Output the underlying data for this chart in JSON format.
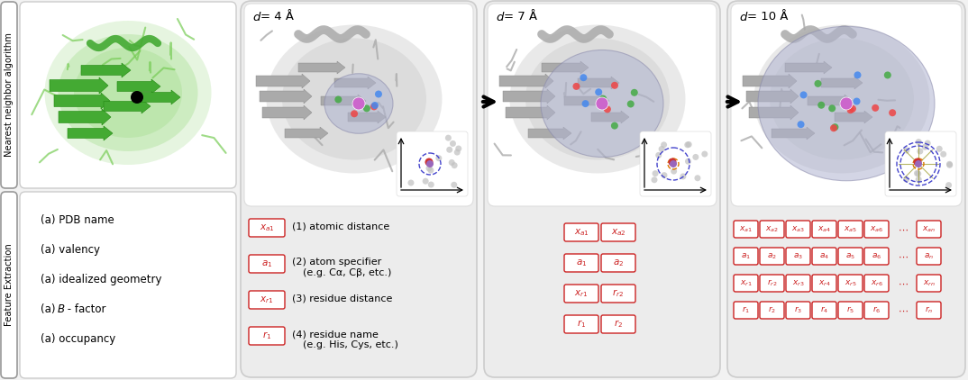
{
  "bg_color": "#f2f2f2",
  "panel_bg": "#ececec",
  "white": "#ffffff",
  "red_color": "#cc2222",
  "title_left_top": "Nearest neighbor algorithm",
  "title_left_bottom": "Feature Extraction",
  "feature_items": [
    "(a) PDB name",
    "(a) valency",
    "(a) idealized geometry",
    "(a) B - factor",
    "(a) occupancy"
  ],
  "panel_titles": [
    "d = 4 Å",
    "d = 7 Å",
    "d = 10 Å"
  ],
  "d_values": [
    "4",
    "7",
    "10"
  ],
  "legend_items": [
    {
      "sym": "x_{a1}",
      "desc1": "(1) atomic distance",
      "desc2": ""
    },
    {
      "sym": "a_1",
      "desc1": "(2) atom specifier",
      "desc2": "(e.g. Cα, Cβ, etc.)"
    },
    {
      "sym": "x_{r1}",
      "desc1": "(3) residue distance",
      "desc2": ""
    },
    {
      "sym": "r_1",
      "desc1": "(4) residue name",
      "desc2": "(e.g. His, Cys, etc.)"
    }
  ],
  "panel2_rows": [
    [
      "x_{a1}",
      "x_{a2}"
    ],
    [
      "a_1",
      "a_2"
    ],
    [
      "x_{r1}",
      "r_{r2}"
    ],
    [
      "r_1",
      "r_2"
    ]
  ],
  "panel3_rows": [
    [
      "x_{a1}",
      "x_{a2}",
      "x_{a3}",
      "x_{a4}",
      "x_{a5}",
      "x_{a6}",
      "\\cdots",
      "x_{an}"
    ],
    [
      "a_1",
      "a_2",
      "a_3",
      "a_4",
      "a_5",
      "a_6",
      "\\cdots",
      "a_n"
    ],
    [
      "x_{r1}",
      "r_{r2}",
      "x_{r3}",
      "x_{r4}",
      "x_{r5}",
      "x_{r6}",
      "\\cdots",
      "x_{rn}"
    ],
    [
      "r_1",
      "r_2",
      "r_3",
      "r_4",
      "r_5",
      "r_6",
      "\\cdots",
      "r_n"
    ]
  ],
  "scatter_gray": "#c0c0c0",
  "scatter_purple": "#9966bb",
  "scatter_red": "#cc3333",
  "scatter_orange": "#dd8800",
  "sphere_color": "#b0b4d0",
  "sphere_edge": "#8888aa",
  "protein_gray": "#aaaaaa",
  "protein_gray_dark": "#888888",
  "green_protein": "#44aa33",
  "green_light": "#77cc55"
}
